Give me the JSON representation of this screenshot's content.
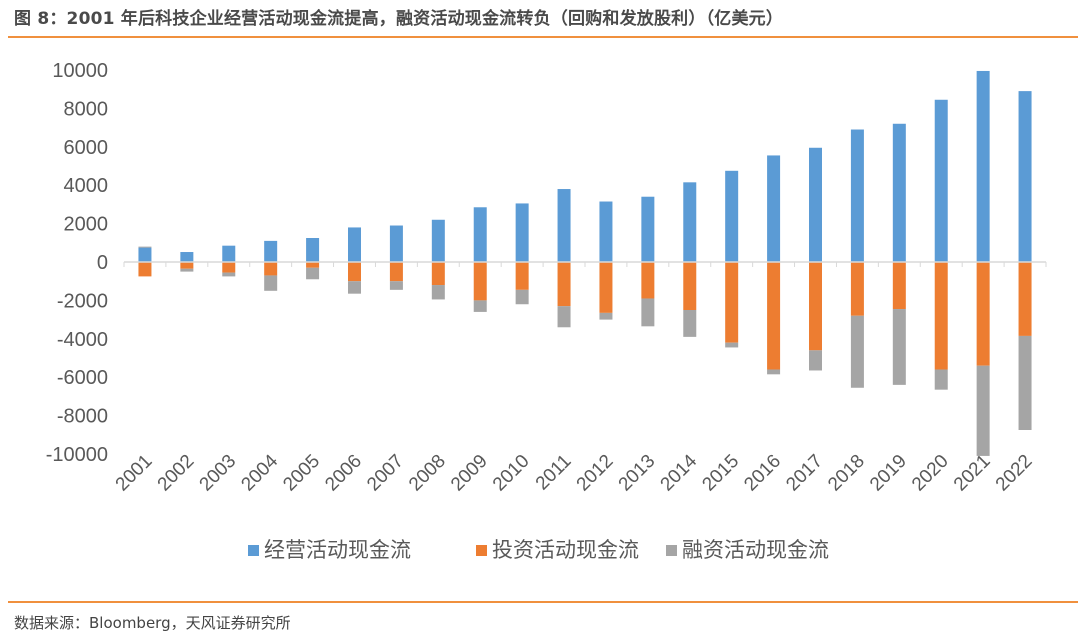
{
  "header": {
    "title": "图 8：2001 年后科技企业经营活动现金流提高，融资活动现金流转负（回购和发放股利）（亿美元）"
  },
  "footer": {
    "source": "数据来源：Bloomberg，天风证券研究所"
  },
  "colors": {
    "operating": "#5b9bd5",
    "investing": "#ed7d31",
    "financing": "#a5a5a5",
    "axis": "#d9d9d9",
    "text": "#595959",
    "rule": "#f0903e"
  },
  "chart_data": {
    "type": "bar",
    "title": "",
    "xlabel": "",
    "ylabel": "",
    "ylim": [
      -10000,
      10000
    ],
    "yticks": [
      10000,
      8000,
      6000,
      4000,
      2000,
      0,
      -2000,
      -4000,
      -6000,
      -8000,
      -10000
    ],
    "grid": false,
    "legend_position": "bottom",
    "stacked": true,
    "categories": [
      "2001",
      "2002",
      "2003",
      "2004",
      "2005",
      "2006",
      "2007",
      "2008",
      "2009",
      "2010",
      "2011",
      "2012",
      "2013",
      "2014",
      "2015",
      "2016",
      "2017",
      "2018",
      "2019",
      "2020",
      "2021",
      "2022"
    ],
    "series": [
      {
        "name": "经营活动现金流",
        "color": "#5b9bd5",
        "values": [
          750,
          520,
          850,
          1100,
          1250,
          1800,
          1900,
          2200,
          2850,
          3050,
          3800,
          3150,
          3400,
          4150,
          4750,
          5550,
          5950,
          6900,
          7200,
          8450,
          9950,
          8900
        ]
      },
      {
        "name": "投资活动现金流",
        "color": "#ed7d31",
        "values": [
          -750,
          -350,
          -550,
          -700,
          -300,
          -1000,
          -1000,
          -1200,
          -2000,
          -1450,
          -2300,
          -2650,
          -1900,
          -2500,
          -4200,
          -5600,
          -4600,
          -2800,
          -2450,
          -5600,
          -5400,
          -3850
        ]
      },
      {
        "name": "融资活动现金流",
        "color": "#a5a5a5",
        "values": [
          50,
          -150,
          -200,
          -800,
          -600,
          -650,
          -450,
          -750,
          -600,
          -750,
          -1100,
          -350,
          -1450,
          -1400,
          -250,
          -250,
          -1050,
          -3750,
          -3950,
          -1050,
          -4700,
          -4900
        ]
      }
    ]
  }
}
